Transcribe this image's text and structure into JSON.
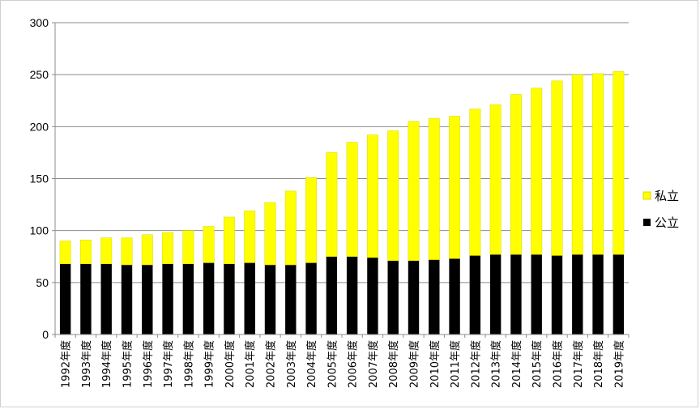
{
  "chart_data": {
    "type": "bar",
    "stacked": true,
    "title": "",
    "xlabel": "",
    "ylabel": "",
    "ylim": [
      0,
      300
    ],
    "yticks": [
      0,
      50,
      100,
      150,
      200,
      250,
      300
    ],
    "grid": true,
    "legend_position": "right",
    "categories": [
      "1992年度",
      "1993年度",
      "1994年度",
      "1995年度",
      "1996年度",
      "1997年度",
      "1998年度",
      "1999年度",
      "2000年度",
      "2001年度",
      "2002年度",
      "2003年度",
      "2004年度",
      "2005年度",
      "2006年度",
      "2007年度",
      "2008年度",
      "2009年度",
      "2010年度",
      "2011年度",
      "2012年度",
      "2013年度",
      "2014年度",
      "2015年度",
      "2016年度",
      "2017年度",
      "2018年度",
      "2019年度"
    ],
    "series": [
      {
        "name": "公立",
        "color": "#000000",
        "values": [
          68,
          68,
          68,
          67,
          67,
          68,
          68,
          69,
          68,
          69,
          67,
          67,
          69,
          75,
          75,
          74,
          71,
          71,
          72,
          73,
          76,
          77,
          77,
          77,
          76,
          77,
          77,
          77
        ]
      },
      {
        "name": "私立",
        "color": "#ffff00",
        "values": [
          22,
          23,
          25,
          26,
          29,
          30,
          32,
          35,
          45,
          50,
          60,
          71,
          82,
          100,
          110,
          118,
          125,
          134,
          136,
          137,
          141,
          144,
          154,
          160,
          168,
          173,
          174,
          176
        ]
      }
    ],
    "legend": [
      "私立",
      "公立"
    ]
  }
}
